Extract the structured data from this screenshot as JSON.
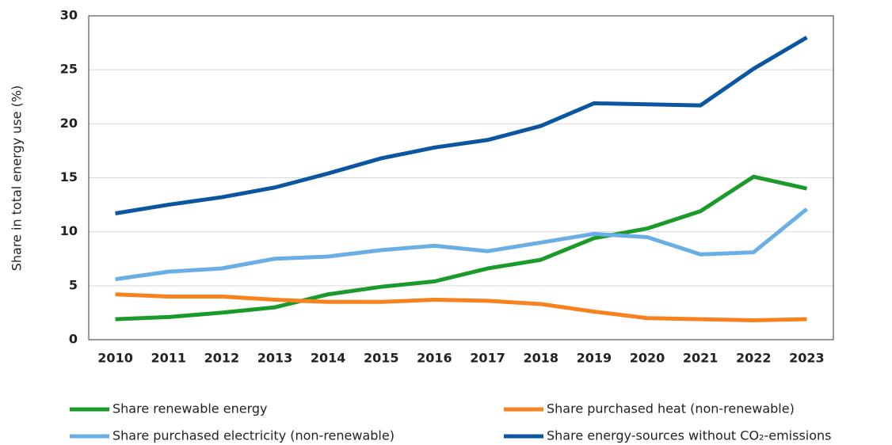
{
  "chart_data": {
    "type": "line",
    "y_label": "Share in total energy use (%)",
    "categories": [
      "2010",
      "2011",
      "2012",
      "2013",
      "2014",
      "2015",
      "2016",
      "2017",
      "2018",
      "2019",
      "2020",
      "2021",
      "2022",
      "2023"
    ],
    "series": [
      {
        "name": "Share renewable energy",
        "color": "#1a9a2a",
        "values": [
          1.9,
          2.1,
          2.5,
          3.0,
          4.2,
          4.9,
          5.4,
          6.6,
          7.4,
          9.4,
          10.3,
          11.9,
          15.1,
          14.0
        ]
      },
      {
        "name": "Share purchased heat (non-renewable)",
        "color": "#f7821e",
        "values": [
          4.2,
          4.0,
          4.0,
          3.7,
          3.5,
          3.5,
          3.7,
          3.6,
          3.3,
          2.6,
          2.0,
          1.9,
          1.8,
          1.9
        ]
      },
      {
        "name": "Share purchased electricity (non-renewable)",
        "color": "#6aaee6",
        "values": [
          5.6,
          6.3,
          6.6,
          7.5,
          7.7,
          8.3,
          8.7,
          8.2,
          9.0,
          9.8,
          9.5,
          7.9,
          8.1,
          12.1
        ]
      },
      {
        "name": "Share energy-sources without CO₂-emissions",
        "color": "#0b56a0",
        "values": [
          11.7,
          12.5,
          13.2,
          14.1,
          15.4,
          16.8,
          17.8,
          18.5,
          19.8,
          21.9,
          21.8,
          21.7,
          25.1,
          28.0
        ]
      }
    ],
    "ylim": [
      0,
      30
    ],
    "yticks": [
      0,
      5,
      10,
      15,
      20,
      25,
      30
    ],
    "grid": true,
    "legend": "bottom"
  }
}
